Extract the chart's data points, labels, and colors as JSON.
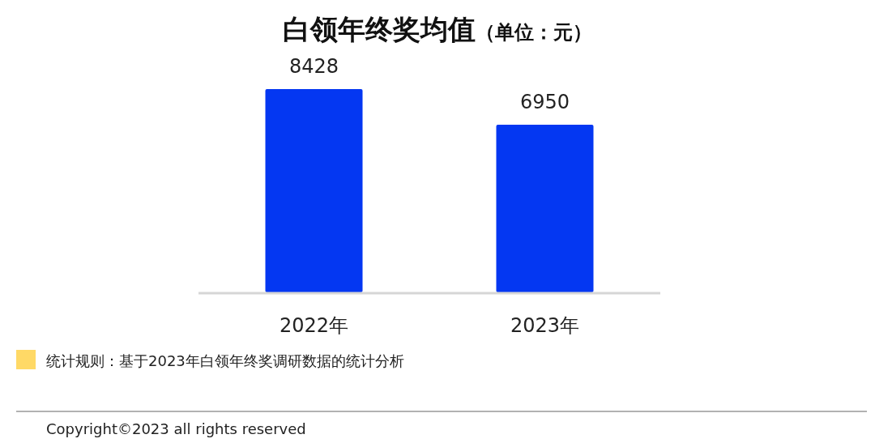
{
  "chart_data": {
    "type": "bar",
    "title": "白领年终奖均值",
    "subtitle": "（单位：元）",
    "categories": [
      "2022年",
      "2023年"
    ],
    "values": [
      8428,
      6950
    ],
    "color": "#0437f2",
    "data_labels": true,
    "annotations": [
      "统计规则：基于2023年白领年终奖调研数据的统计分析",
      "Copyright©2023 all rights reserved"
    ]
  }
}
